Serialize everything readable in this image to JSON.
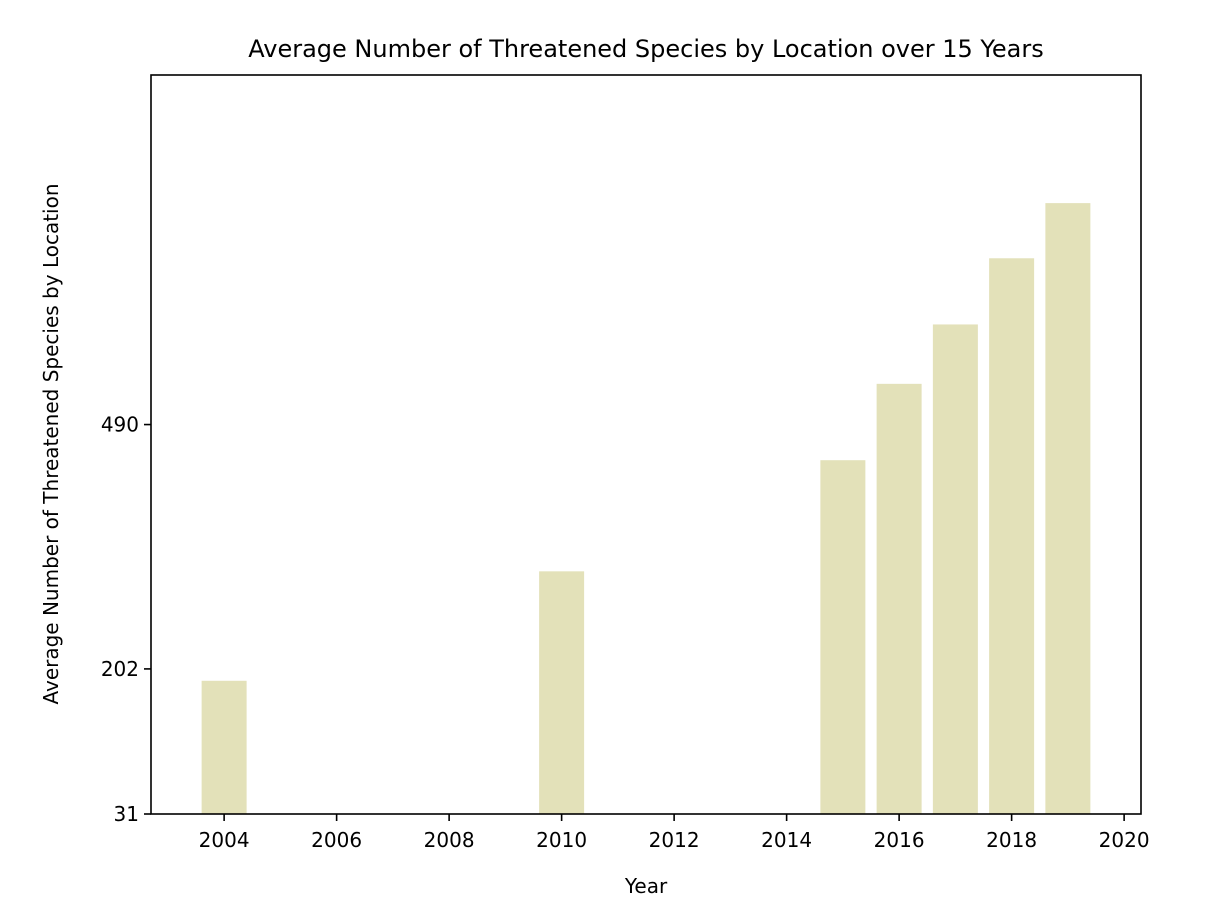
{
  "chart_data": {
    "type": "bar",
    "title": "Average Number of Threatened Species by Location over 15 Years",
    "xlabel": "Year",
    "ylabel": "Average Number of Threatened Species by Location",
    "categories": [
      2004,
      2010,
      2015,
      2016,
      2017,
      2018,
      2019
    ],
    "values": [
      188,
      317,
      448,
      538,
      608,
      686,
      751
    ],
    "xlim": [
      2002.7,
      2020.3
    ],
    "ylim": [
      31,
      902
    ],
    "xticks": [
      2004,
      2006,
      2008,
      2010,
      2012,
      2014,
      2016,
      2018,
      2020
    ],
    "yticks": [
      31,
      202,
      490
    ],
    "bar_width": 0.8,
    "grid": false,
    "legend": "none",
    "bar_color": "#e3e1b9"
  }
}
